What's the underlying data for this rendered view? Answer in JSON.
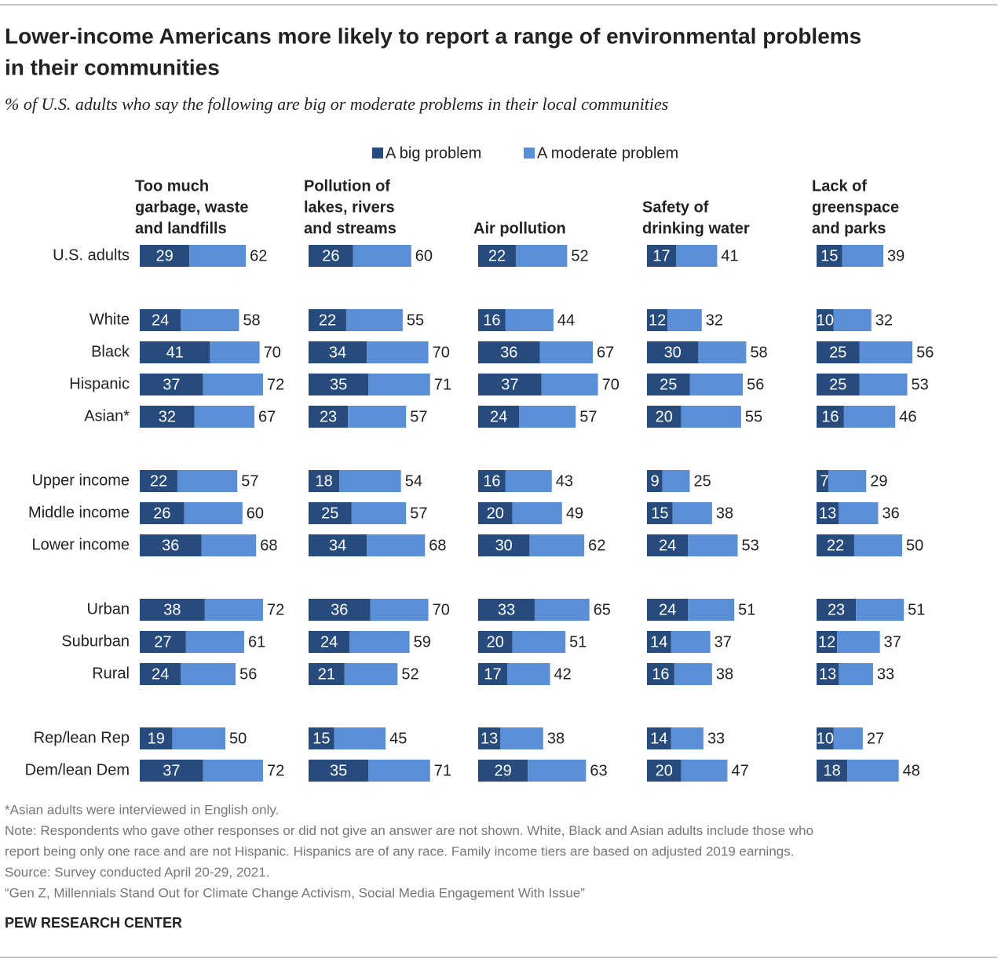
{
  "chart_data": {
    "type": "bar",
    "title_lines": [
      "Lower-income Americans more likely to report a range of environmental problems",
      "in their communities"
    ],
    "subtitle": "% of U.S. adults who say the following are big or moderate problems in their local communities",
    "categories": [
      "U.S. adults",
      "White",
      "Black",
      "Hispanic",
      "Asian*",
      "Upper income",
      "Middle income",
      "Lower income",
      "Urban",
      "Suburban",
      "Rural",
      "Rep/lean Rep",
      "Dem/lean Dem"
    ],
    "series": [
      {
        "name": "A big problem",
        "color": "#284b7e"
      },
      {
        "name": "A moderate problem",
        "color": "#5a8fd8"
      }
    ],
    "panels": [
      {
        "title_lines": [
          "Too much",
          "garbage, waste",
          "and landfills"
        ],
        "big": [
          29,
          24,
          41,
          37,
          32,
          22,
          26,
          36,
          38,
          27,
          24,
          19,
          37
        ],
        "moderate": [
          33,
          34,
          29,
          35,
          35,
          35,
          34,
          32,
          34,
          34,
          32,
          31,
          35
        ],
        "totals": [
          62,
          58,
          70,
          72,
          67,
          57,
          60,
          68,
          72,
          61,
          56,
          50,
          72
        ]
      },
      {
        "title_lines": [
          "Pollution of",
          "lakes, rivers",
          "and streams"
        ],
        "big": [
          26,
          22,
          34,
          35,
          23,
          18,
          25,
          34,
          36,
          24,
          21,
          15,
          35
        ],
        "moderate": [
          34,
          33,
          36,
          36,
          34,
          36,
          32,
          34,
          34,
          35,
          31,
          30,
          36
        ],
        "totals": [
          60,
          55,
          70,
          71,
          57,
          54,
          57,
          68,
          70,
          59,
          52,
          45,
          71
        ]
      },
      {
        "title_lines": [
          "Air pollution"
        ],
        "big": [
          22,
          16,
          36,
          37,
          24,
          16,
          20,
          30,
          33,
          20,
          17,
          13,
          29
        ],
        "moderate": [
          30,
          28,
          31,
          33,
          33,
          27,
          29,
          32,
          32,
          31,
          25,
          25,
          34
        ],
        "totals": [
          52,
          44,
          67,
          70,
          57,
          43,
          49,
          62,
          65,
          51,
          42,
          38,
          63
        ]
      },
      {
        "title_lines": [
          "Safety of",
          "drinking water"
        ],
        "big": [
          17,
          12,
          30,
          25,
          20,
          9,
          15,
          24,
          24,
          14,
          16,
          14,
          20
        ],
        "moderate": [
          24,
          20,
          28,
          31,
          35,
          16,
          23,
          29,
          27,
          23,
          22,
          19,
          27
        ],
        "totals": [
          41,
          32,
          58,
          56,
          55,
          25,
          38,
          53,
          51,
          37,
          38,
          33,
          47
        ]
      },
      {
        "title_lines": [
          "Lack of",
          "greenspace",
          "and parks"
        ],
        "big": [
          15,
          10,
          25,
          25,
          16,
          7,
          13,
          22,
          23,
          12,
          13,
          10,
          18
        ],
        "moderate": [
          24,
          22,
          31,
          28,
          30,
          22,
          23,
          28,
          28,
          25,
          20,
          17,
          30
        ],
        "totals": [
          39,
          32,
          56,
          53,
          46,
          29,
          36,
          50,
          51,
          37,
          33,
          27,
          48
        ]
      }
    ],
    "notes": [
      "*Asian adults were interviewed in English only.",
      "Note: Respondents who gave other responses or did not give an answer are not shown. White, Black and Asian adults include those who",
      "report being only one race and are not Hispanic. Hispanics are of any race. Family income tiers are based on adjusted 2019 earnings.",
      "Source: Survey conducted April 20-29, 2021.",
      "“Gen Z, Millennials Stand Out for Climate Change Activism, Social Media Engagement With Issue”"
    ],
    "source_org": "PEW RESEARCH CENTER"
  }
}
